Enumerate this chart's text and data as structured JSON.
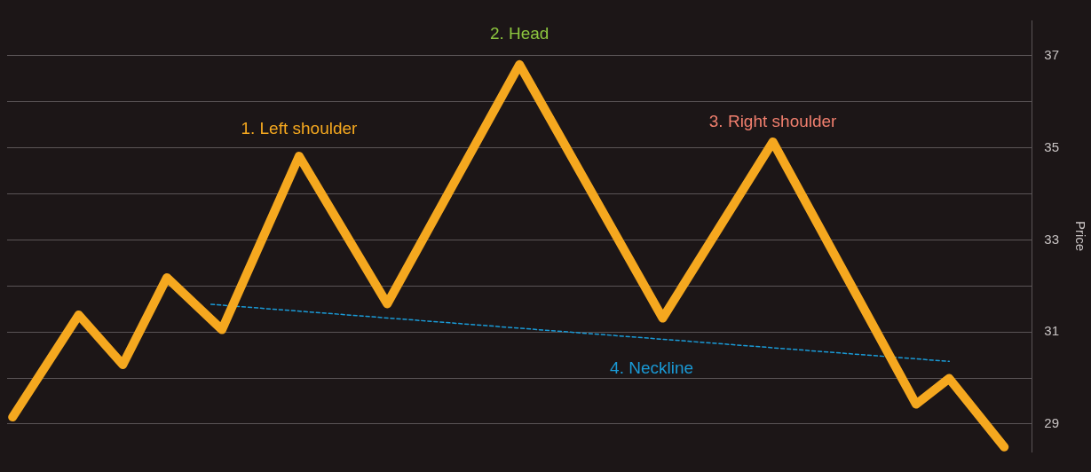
{
  "chart_data": {
    "type": "line",
    "ylabel": "Price",
    "categories": [
      null,
      null,
      null,
      null,
      null,
      null,
      null,
      null,
      null,
      null,
      null,
      null,
      null,
      null,
      null,
      null,
      null,
      null,
      null,
      null,
      null,
      null,
      null,
      null,
      null,
      null,
      null,
      null,
      null,
      null,
      null,
      null,
      null,
      null,
      null,
      null,
      null,
      null,
      null,
      null,
      null,
      null,
      null,
      null,
      null,
      null,
      null,
      null,
      null,
      null,
      null,
      null,
      null,
      null,
      null,
      null,
      null,
      null,
      null,
      null,
      null,
      null,
      null,
      null,
      null,
      null,
      null,
      null,
      null,
      null,
      null,
      null,
      null,
      null,
      null,
      null,
      null,
      null,
      null,
      null,
      null,
      null,
      null,
      null,
      null,
      null,
      null,
      null,
      null,
      null,
      null,
      null,
      null
    ],
    "ylim": [
      28.4,
      37.77
    ],
    "yticks": [
      {
        "value": 29,
        "label": "29"
      },
      {
        "value": 30,
        "label": null
      },
      {
        "value": 31,
        "label": "31"
      },
      {
        "value": 32,
        "label": null
      },
      {
        "value": 33,
        "label": "33"
      },
      {
        "value": 34,
        "label": null
      },
      {
        "value": 35,
        "label": "35"
      },
      {
        "value": 36,
        "label": null
      },
      {
        "value": 37,
        "label": "37"
      }
    ],
    "tick_labels": "y",
    "grid": "y",
    "legend": false,
    "marker": "none",
    "series": [
      {
        "color": "#f5a81f",
        "line_style": "solid",
        "values": [
          29.15,
          null,
          null,
          null,
          null,
          null,
          31.37,
          null,
          null,
          null,
          30.29,
          null,
          null,
          null,
          32.18,
          null,
          null,
          null,
          null,
          31.05,
          null,
          null,
          null,
          null,
          null,
          null,
          34.82,
          null,
          null,
          null,
          null,
          null,
          null,
          null,
          31.61,
          null,
          null,
          null,
          null,
          null,
          null,
          null,
          null,
          null,
          null,
          null,
          36.81,
          null,
          null,
          null,
          null,
          null,
          null,
          null,
          null,
          null,
          null,
          null,
          null,
          31.3,
          null,
          null,
          null,
          null,
          null,
          null,
          null,
          null,
          null,
          35.13,
          null,
          null,
          null,
          null,
          null,
          null,
          null,
          null,
          null,
          null,
          null,
          null,
          29.43,
          null,
          null,
          29.99,
          null,
          null,
          null,
          null,
          28.5,
          null,
          null
        ]
      },
      {
        "color": "#1a9ad6",
        "line_style": "dashed",
        "values": [
          null,
          null,
          null,
          null,
          null,
          null,
          null,
          null,
          null,
          null,
          null,
          null,
          null,
          null,
          null,
          null,
          null,
          null,
          31.6,
          null,
          null,
          null,
          null,
          null,
          null,
          null,
          null,
          null,
          null,
          null,
          null,
          null,
          null,
          null,
          null,
          null,
          null,
          null,
          null,
          null,
          null,
          null,
          null,
          null,
          null,
          null,
          null,
          null,
          null,
          null,
          null,
          null,
          null,
          null,
          null,
          null,
          null,
          null,
          null,
          null,
          null,
          null,
          null,
          null,
          null,
          null,
          null,
          null,
          null,
          null,
          null,
          null,
          null,
          null,
          null,
          null,
          null,
          null,
          null,
          null,
          null,
          null,
          null,
          null,
          null,
          30.36,
          null,
          null,
          null,
          null,
          null,
          null,
          null
        ]
      }
    ],
    "annotations": [
      "1. Left shoulder",
      "2. Head",
      "3. Right shoulder",
      "4. Neckline"
    ]
  }
}
